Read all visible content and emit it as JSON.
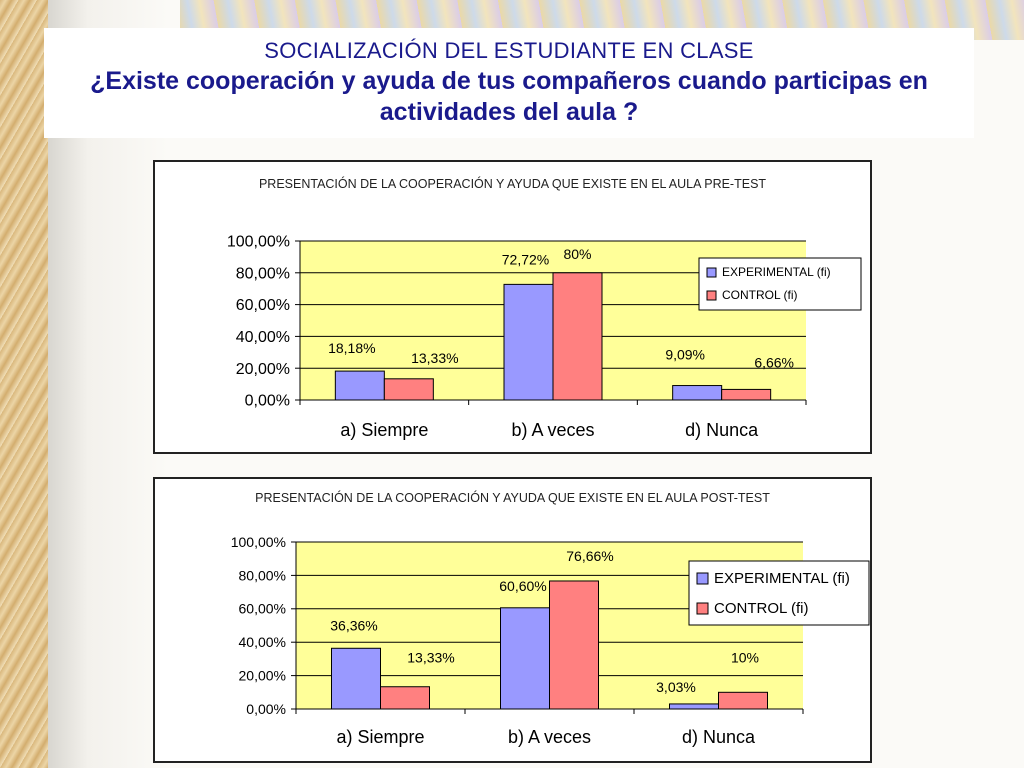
{
  "slide": {
    "heading": "SOCIALIZACIÓN DEL ESTUDIANTE EN CLASE",
    "question": "¿Existe cooperación y ayuda de tus compañeros cuando participas en actividades del aula ?"
  },
  "colors": {
    "plot_area": "#ffff99",
    "experimental": "#9999ff",
    "control": "#ff8080",
    "title_text": "#1a1a8c"
  },
  "chart_data": [
    {
      "type": "bar",
      "title": "PRESENTACIÓN DE LA COOPERACIÓN Y AYUDA QUE EXISTE EN EL AULA  PRE-TEST",
      "categories": [
        "a) Siempre",
        "b) A veces",
        "d) Nunca"
      ],
      "series": [
        {
          "name": "EXPERIMENTAL (fi)",
          "values": [
            18.18,
            72.72,
            9.09
          ],
          "labels": [
            "18,18%",
            "72,72%",
            "9,09%"
          ]
        },
        {
          "name": "CONTROL (fi)",
          "values": [
            13.33,
            80,
            6.66
          ],
          "labels": [
            "13,33%",
            "80%",
            "6,66%"
          ]
        }
      ],
      "yticks": [
        "0,00%",
        "20,00%",
        "40,00%",
        "60,00%",
        "80,00%",
        "100,00%"
      ],
      "ylim": [
        0,
        100
      ],
      "grid": true,
      "legend": "right"
    },
    {
      "type": "bar",
      "title": "PRESENTACIÓN DE LA COOPERACIÓN Y AYUDA QUE EXISTE EN EL AULA  POST-TEST",
      "categories": [
        "a) Siempre",
        "b) A veces",
        "d) Nunca"
      ],
      "series": [
        {
          "name": "EXPERIMENTAL (fi)",
          "values": [
            36.36,
            60.6,
            3.03
          ],
          "labels": [
            "36,36%",
            "60,60%",
            "3,03%"
          ]
        },
        {
          "name": "CONTROL (fi)",
          "values": [
            13.33,
            76.66,
            10
          ],
          "labels": [
            "13,33%",
            "76,66%",
            "10%"
          ]
        }
      ],
      "yticks": [
        "0,00%",
        "20,00%",
        "40,00%",
        "60,00%",
        "80,00%",
        "100,00%"
      ],
      "ylim": [
        0,
        100
      ],
      "grid": true,
      "legend": "right"
    }
  ]
}
